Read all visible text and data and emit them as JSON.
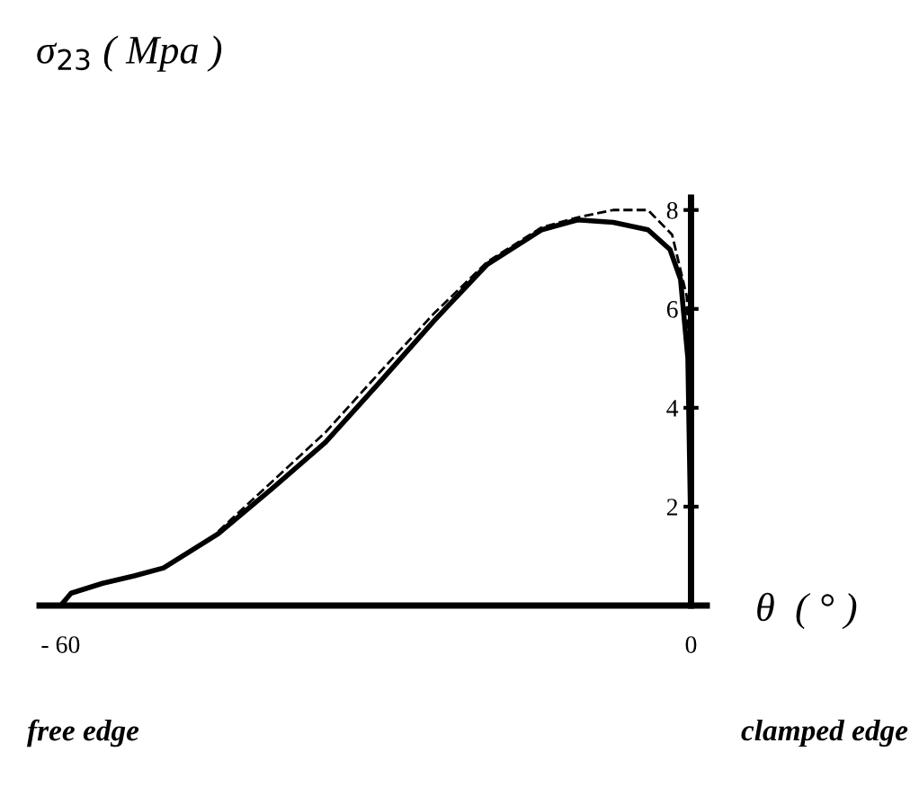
{
  "chart_data": {
    "type": "line",
    "title": "σ$_{23}$ ( Mpa )",
    "xlabel": "θ  ( ° )",
    "annotations": [
      "free edge",
      "clamped edge"
    ],
    "xlim": [
      -62,
      1.5
    ],
    "ylim": [
      0,
      8.25
    ],
    "xticks": [
      {
        "value": -60,
        "label": "- 60"
      },
      0
    ],
    "yticks": [
      2,
      4,
      6,
      8
    ],
    "series": [
      {
        "color": "#000000",
        "line_style": "solid",
        "x": [
          -60,
          -59,
          -56,
          -53,
          -50.2,
          -45,
          -39.9,
          -34.8,
          -29.7,
          -24.5,
          -19.4,
          -14.2,
          -10.8,
          -7.4,
          -4.1,
          -2,
          -1,
          -0.3,
          0
        ],
        "values": [
          0,
          0.25,
          0.45,
          0.6,
          0.76,
          1.45,
          2.36,
          3.3,
          4.5,
          5.75,
          6.9,
          7.6,
          7.8,
          7.75,
          7.6,
          7.2,
          6.6,
          5,
          1.2
        ]
      },
      {
        "color": "#000000",
        "line_style": "dashed",
        "x": [
          -45,
          -39.9,
          -34.8,
          -29.7,
          -24.5,
          -19.4,
          -14.2,
          -10.8,
          -7.4,
          -4.1,
          -1.8,
          -0.4,
          0
        ],
        "values": [
          1.5,
          2.5,
          3.5,
          4.7,
          5.9,
          6.95,
          7.65,
          7.85,
          8.0,
          8.0,
          7.5,
          6.25,
          3.9
        ]
      }
    ]
  }
}
